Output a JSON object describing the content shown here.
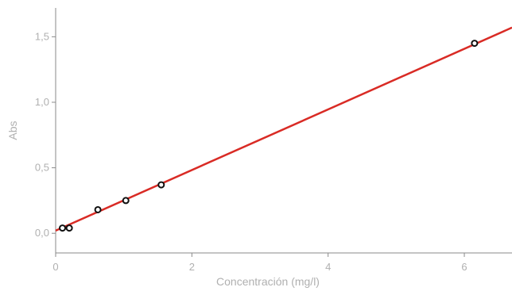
{
  "chart_data": {
    "type": "scatter",
    "title": "",
    "xlabel": "Concentración (mg/l)",
    "ylabel": "Abs",
    "xlim": [
      0,
      6.7
    ],
    "ylim": [
      -0.15,
      1.72
    ],
    "x_ticks": [
      {
        "value": 0,
        "label": "0"
      },
      {
        "value": 2,
        "label": "2"
      },
      {
        "value": 4,
        "label": "4"
      },
      {
        "value": 6,
        "label": "6"
      }
    ],
    "y_ticks": [
      {
        "value": 0,
        "label": "0,0"
      },
      {
        "value": 0.5,
        "label": "0,5"
      },
      {
        "value": 1.0,
        "label": "1,0"
      },
      {
        "value": 1.5,
        "label": "1,5"
      }
    ],
    "grid": false,
    "legend": "none",
    "series": [
      {
        "type": "scatter",
        "color": "#111111",
        "points": [
          {
            "x": 0.1,
            "y": 0.04
          },
          {
            "x": 0.2,
            "y": 0.04
          },
          {
            "x": 0.62,
            "y": 0.18
          },
          {
            "x": 1.03,
            "y": 0.25
          },
          {
            "x": 1.55,
            "y": 0.37
          },
          {
            "x": 6.15,
            "y": 1.45
          }
        ]
      },
      {
        "type": "line",
        "color": "#d92b25",
        "points": [
          {
            "x": 0.0,
            "y": 0.02
          },
          {
            "x": 6.7,
            "y": 1.57
          }
        ]
      }
    ]
  }
}
